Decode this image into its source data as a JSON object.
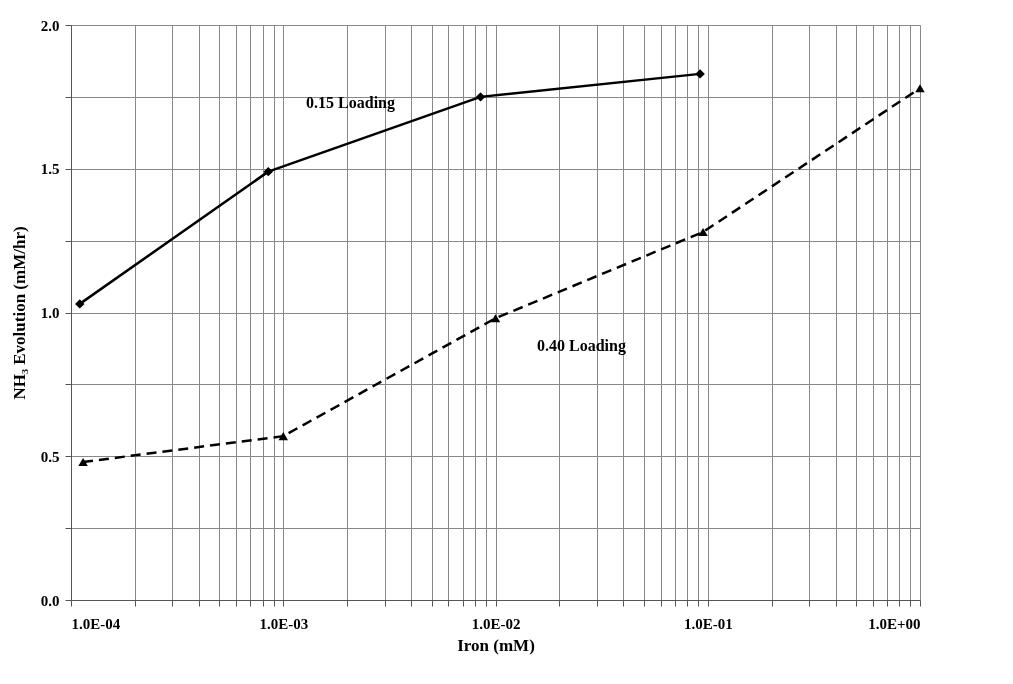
{
  "chart_data": {
    "type": "line",
    "xlabel": "Iron (mM)",
    "ylabel": "NH₃ Evolution (mM/hr)",
    "log": "x",
    "grid": true,
    "xlim": [
      0.0001,
      1
    ],
    "xticks": [
      {
        "value": 0.0001,
        "label": "1.0E-04"
      },
      {
        "value": 0.0002,
        "label": null
      },
      {
        "value": 0.0003,
        "label": null
      },
      {
        "value": 0.0004,
        "label": null
      },
      {
        "value": 0.0005,
        "label": null
      },
      {
        "value": 0.0006,
        "label": null
      },
      {
        "value": 0.0007,
        "label": null
      },
      {
        "value": 0.0008,
        "label": null
      },
      {
        "value": 0.0009,
        "label": null
      },
      {
        "value": 0.001,
        "label": "1.0E-03"
      },
      {
        "value": 0.002,
        "label": null
      },
      {
        "value": 0.003,
        "label": null
      },
      {
        "value": 0.004,
        "label": null
      },
      {
        "value": 0.005,
        "label": null
      },
      {
        "value": 0.006,
        "label": null
      },
      {
        "value": 0.007,
        "label": null
      },
      {
        "value": 0.008,
        "label": null
      },
      {
        "value": 0.009,
        "label": null
      },
      {
        "value": 0.01,
        "label": "1.0E-02"
      },
      {
        "value": 0.02,
        "label": null
      },
      {
        "value": 0.03,
        "label": null
      },
      {
        "value": 0.04,
        "label": null
      },
      {
        "value": 0.05,
        "label": null
      },
      {
        "value": 0.06,
        "label": null
      },
      {
        "value": 0.07,
        "label": null
      },
      {
        "value": 0.08,
        "label": null
      },
      {
        "value": 0.09,
        "label": null
      },
      {
        "value": 0.1,
        "label": "1.0E-01"
      },
      {
        "value": 0.2,
        "label": null
      },
      {
        "value": 0.3,
        "label": null
      },
      {
        "value": 0.4,
        "label": null
      },
      {
        "value": 0.5,
        "label": null
      },
      {
        "value": 0.6,
        "label": null
      },
      {
        "value": 0.7,
        "label": null
      },
      {
        "value": 0.8,
        "label": null
      },
      {
        "value": 0.9,
        "label": null
      },
      {
        "value": 1,
        "label": "1.0E+00"
      }
    ],
    "ylim": [
      0,
      2
    ],
    "yticks": [
      {
        "value": 0,
        "label": "0.0"
      },
      {
        "value": 0.25,
        "label": null
      },
      {
        "value": 0.5,
        "label": "0.5"
      },
      {
        "value": 0.75,
        "label": null
      },
      {
        "value": 1,
        "label": "1.0"
      },
      {
        "value": 1.25,
        "label": null
      },
      {
        "value": 1.5,
        "label": "1.5"
      },
      {
        "value": 1.75,
        "label": null
      },
      {
        "value": 2,
        "label": "2.0"
      }
    ],
    "series": [
      {
        "name": "0.15 Loading",
        "color": "#000000",
        "marker": "diamond",
        "line_style": "solid",
        "x": [
          0.00011,
          0.00085,
          0.0085,
          0.092
        ],
        "values": [
          1.03,
          1.49,
          1.75,
          1.83
        ]
      },
      {
        "name": "0.40 Loading",
        "color": "#000000",
        "marker": "triangle",
        "line_style": "dashed",
        "x": [
          0.000114,
          0.001,
          0.01,
          0.095,
          1
        ],
        "values": [
          0.48,
          0.57,
          0.98,
          1.28,
          1.78
        ]
      }
    ]
  }
}
